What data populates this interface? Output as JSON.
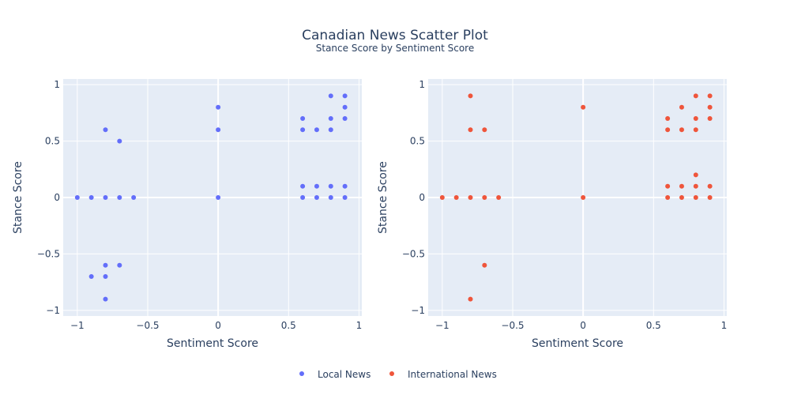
{
  "title": "Canadian News Scatter Plot",
  "subtitle": "Stance Score by Sentiment Score",
  "colors": {
    "plot_bg": "#E5ECF6",
    "grid": "#ffffff",
    "local": "#636EFA",
    "international": "#EF553B",
    "text": "#2a3f5f"
  },
  "legend": {
    "placement": "bottom-center",
    "items": [
      "Local News",
      "International News"
    ]
  },
  "chart_data": [
    {
      "type": "scatter",
      "xlabel": "Sentiment Score",
      "ylabel": "Stance Score",
      "xlim": [
        -1.1,
        1.02
      ],
      "ylim": [
        -1.05,
        1.05
      ],
      "xticks": [
        -1,
        -0.5,
        0,
        0.5,
        1
      ],
      "xtick_labels": [
        "−1",
        "−0.5",
        "0",
        "0.5",
        "1"
      ],
      "yticks": [
        -1,
        -0.5,
        0,
        0.5,
        1
      ],
      "ytick_labels": [
        "−1",
        "−0.5",
        "0",
        "0.5",
        "1"
      ],
      "grid": true,
      "series": [
        {
          "name": "Local News",
          "color": "#636EFA",
          "points": [
            [
              -1,
              0
            ],
            [
              -0.9,
              0
            ],
            [
              -0.8,
              0
            ],
            [
              -0.7,
              0
            ],
            [
              -0.6,
              0
            ],
            [
              -0.8,
              0.6
            ],
            [
              -0.7,
              0.5
            ],
            [
              -0.8,
              -0.6
            ],
            [
              -0.7,
              -0.6
            ],
            [
              -0.9,
              -0.7
            ],
            [
              -0.8,
              -0.7
            ],
            [
              -0.8,
              -0.9
            ],
            [
              0,
              0.8
            ],
            [
              0,
              0.6
            ],
            [
              0,
              0
            ],
            [
              0.8,
              0.9
            ],
            [
              0.9,
              0.9
            ],
            [
              0.9,
              0.8
            ],
            [
              0.6,
              0.7
            ],
            [
              0.8,
              0.7
            ],
            [
              0.9,
              0.7
            ],
            [
              0.6,
              0.6
            ],
            [
              0.7,
              0.6
            ],
            [
              0.8,
              0.6
            ],
            [
              0.6,
              0.1
            ],
            [
              0.7,
              0.1
            ],
            [
              0.8,
              0.1
            ],
            [
              0.9,
              0.1
            ],
            [
              0.6,
              0
            ],
            [
              0.7,
              0
            ],
            [
              0.8,
              0
            ],
            [
              0.9,
              0
            ]
          ]
        }
      ]
    },
    {
      "type": "scatter",
      "xlabel": "Sentiment Score",
      "ylabel": "Stance Score",
      "xlim": [
        -1.1,
        1.02
      ],
      "ylim": [
        -1.05,
        1.05
      ],
      "xticks": [
        -1,
        -0.5,
        0,
        0.5,
        1
      ],
      "xtick_labels": [
        "−1",
        "−0.5",
        "0",
        "0.5",
        "1"
      ],
      "yticks": [
        -1,
        -0.5,
        0,
        0.5,
        1
      ],
      "ytick_labels": [
        "−1",
        "−0.5",
        "0",
        "0.5",
        "1"
      ],
      "grid": true,
      "series": [
        {
          "name": "International News",
          "color": "#EF553B",
          "points": [
            [
              -1,
              0
            ],
            [
              -0.9,
              0
            ],
            [
              -0.8,
              0
            ],
            [
              -0.7,
              0
            ],
            [
              -0.6,
              0
            ],
            [
              -0.8,
              0.9
            ],
            [
              -0.8,
              0.6
            ],
            [
              -0.7,
              0.6
            ],
            [
              -0.7,
              -0.6
            ],
            [
              -0.8,
              -0.9
            ],
            [
              0,
              0.8
            ],
            [
              0,
              0
            ],
            [
              0.8,
              0.9
            ],
            [
              0.9,
              0.9
            ],
            [
              0.7,
              0.8
            ],
            [
              0.9,
              0.8
            ],
            [
              0.6,
              0.7
            ],
            [
              0.8,
              0.7
            ],
            [
              0.9,
              0.7
            ],
            [
              0.6,
              0.6
            ],
            [
              0.7,
              0.6
            ],
            [
              0.8,
              0.6
            ],
            [
              0.8,
              0.2
            ],
            [
              0.6,
              0.1
            ],
            [
              0.7,
              0.1
            ],
            [
              0.8,
              0.1
            ],
            [
              0.9,
              0.1
            ],
            [
              0.6,
              0
            ],
            [
              0.7,
              0
            ],
            [
              0.8,
              0
            ],
            [
              0.9,
              0
            ]
          ]
        }
      ]
    }
  ]
}
